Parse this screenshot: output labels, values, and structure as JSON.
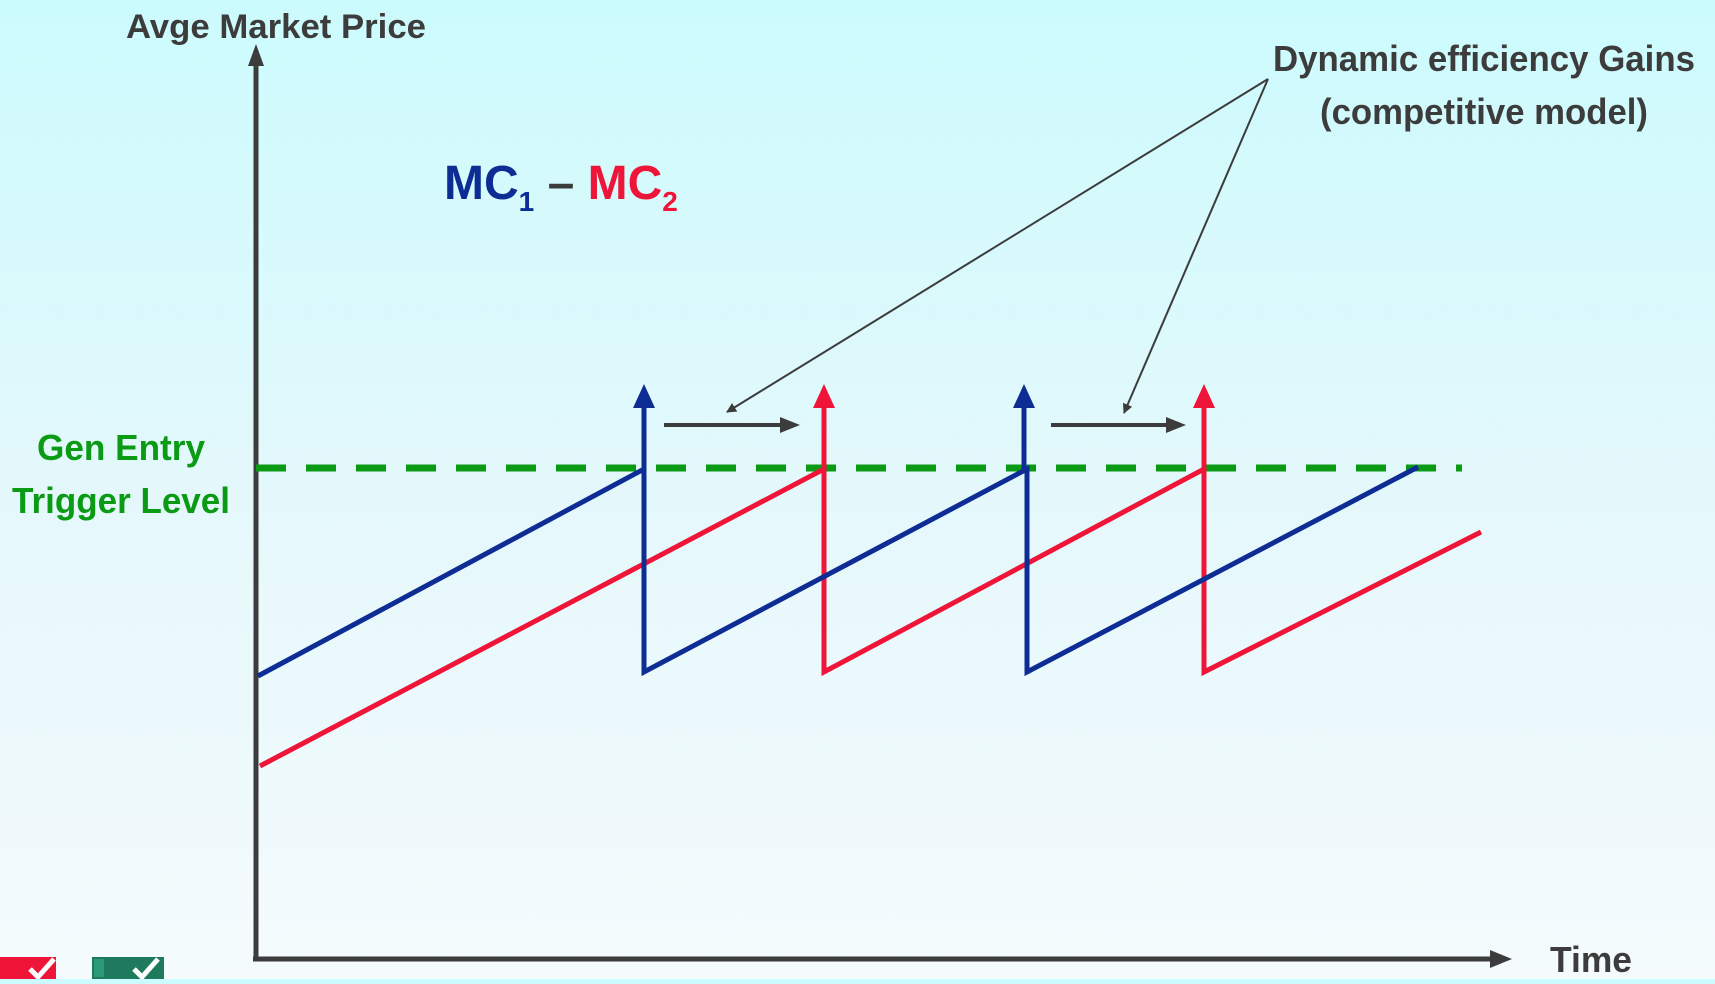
{
  "axes": {
    "y_label": "Avge Market Price",
    "x_label": "Time"
  },
  "annotation": {
    "line1": "Dynamic efficiency Gains",
    "line2": "(competitive model)"
  },
  "legend": {
    "mc1_base": "MC",
    "mc1_sub": "1",
    "separator": " – ",
    "mc2_base": "MC",
    "mc2_sub": "2"
  },
  "trigger": {
    "line1": "Gen Entry",
    "line2": "Trigger Level"
  },
  "colors": {
    "background_top": "#ccfbfd",
    "axis": "#3c3c3c",
    "mc1": "#0d2c94",
    "mc2": "#ee1539",
    "trigger": "#0a9a14",
    "text_dark": "#3c3c3c",
    "annotation_arrow": "#3c3c3c"
  },
  "logos": [
    {
      "name": "red-check-logo",
      "color": "#ee1539"
    },
    {
      "name": "green-check-logo",
      "color": "#1e7a5c"
    }
  ]
}
